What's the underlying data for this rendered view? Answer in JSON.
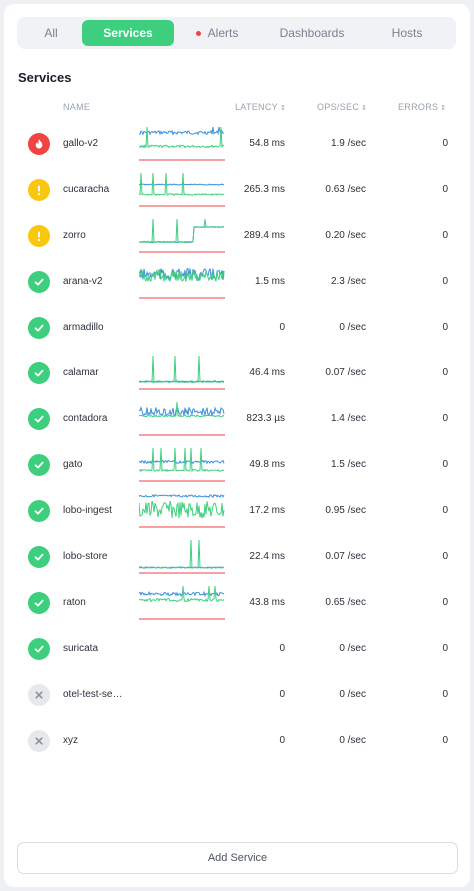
{
  "tabs": [
    {
      "label": "All",
      "active": false
    },
    {
      "label": "Services",
      "active": true
    },
    {
      "label": "Alerts",
      "active": false,
      "has_dot": true
    },
    {
      "label": "Dashboards",
      "active": false
    },
    {
      "label": "Hosts",
      "active": false
    }
  ],
  "section_title": "Services",
  "columns": {
    "name": "NAME",
    "latency": "LATENCY",
    "ops": "OPS/SEC",
    "errors": "ERRORS",
    "sort_glyph": "⇕"
  },
  "colors": {
    "ok": "#3ecf7e",
    "warn": "#f9c80e",
    "err": "#ef4444",
    "off": "#e6e8ec",
    "latency_line": "#3b8fd9",
    "ops_line": "#3ecf7e",
    "error_line": "#ef4444"
  },
  "services": [
    {
      "name": "gallo-v2",
      "status": "error",
      "status_icon": "fire-icon",
      "latency": "54.8 ms",
      "ops": "1.9 /sec",
      "errors": "0",
      "spark": "A"
    },
    {
      "name": "cucaracha",
      "status": "warning",
      "status_icon": "exclamation-icon",
      "latency": "265.3 ms",
      "ops": "0.63 /sec",
      "errors": "0",
      "spark": "B"
    },
    {
      "name": "zorro",
      "status": "warning",
      "status_icon": "exclamation-icon",
      "latency": "289.4 ms",
      "ops": "0.20 /sec",
      "errors": "0",
      "spark": "C"
    },
    {
      "name": "arana-v2",
      "status": "ok",
      "status_icon": "check-icon",
      "latency": "1.5 ms",
      "ops": "2.3 /sec",
      "errors": "0",
      "spark": "D"
    },
    {
      "name": "armadillo",
      "status": "ok",
      "status_icon": "check-icon",
      "latency": "0",
      "ops": "0 /sec",
      "errors": "0",
      "spark": null
    },
    {
      "name": "calamar",
      "status": "ok",
      "status_icon": "check-icon",
      "latency": "46.4 ms",
      "ops": "0.07 /sec",
      "errors": "0",
      "spark": "E"
    },
    {
      "name": "contadora",
      "status": "ok",
      "status_icon": "check-icon",
      "latency": "823.3 µs",
      "ops": "1.4 /sec",
      "errors": "0",
      "spark": "F"
    },
    {
      "name": "gato",
      "status": "ok",
      "status_icon": "check-icon",
      "latency": "49.8 ms",
      "ops": "1.5 /sec",
      "errors": "0",
      "spark": "G"
    },
    {
      "name": "lobo-ingest",
      "status": "ok",
      "status_icon": "check-icon",
      "latency": "17.2 ms",
      "ops": "0.95 /sec",
      "errors": "0",
      "spark": "H"
    },
    {
      "name": "lobo-store",
      "status": "ok",
      "status_icon": "check-icon",
      "latency": "22.4 ms",
      "ops": "0.07 /sec",
      "errors": "0",
      "spark": "I"
    },
    {
      "name": "raton",
      "status": "ok",
      "status_icon": "check-icon",
      "latency": "43.8 ms",
      "ops": "0.65 /sec",
      "errors": "0",
      "spark": "J"
    },
    {
      "name": "suricata",
      "status": "ok",
      "status_icon": "check-icon",
      "latency": "0",
      "ops": "0 /sec",
      "errors": "0",
      "spark": null
    },
    {
      "name": "otel-test-se…",
      "status": "inactive",
      "status_icon": "x-icon",
      "latency": "0",
      "ops": "0 /sec",
      "errors": "0",
      "spark": null
    },
    {
      "name": "xyz",
      "status": "inactive",
      "status_icon": "x-icon",
      "latency": "0",
      "ops": "0 /sec",
      "errors": "0",
      "spark": null
    }
  ],
  "add_button": "Add Service"
}
